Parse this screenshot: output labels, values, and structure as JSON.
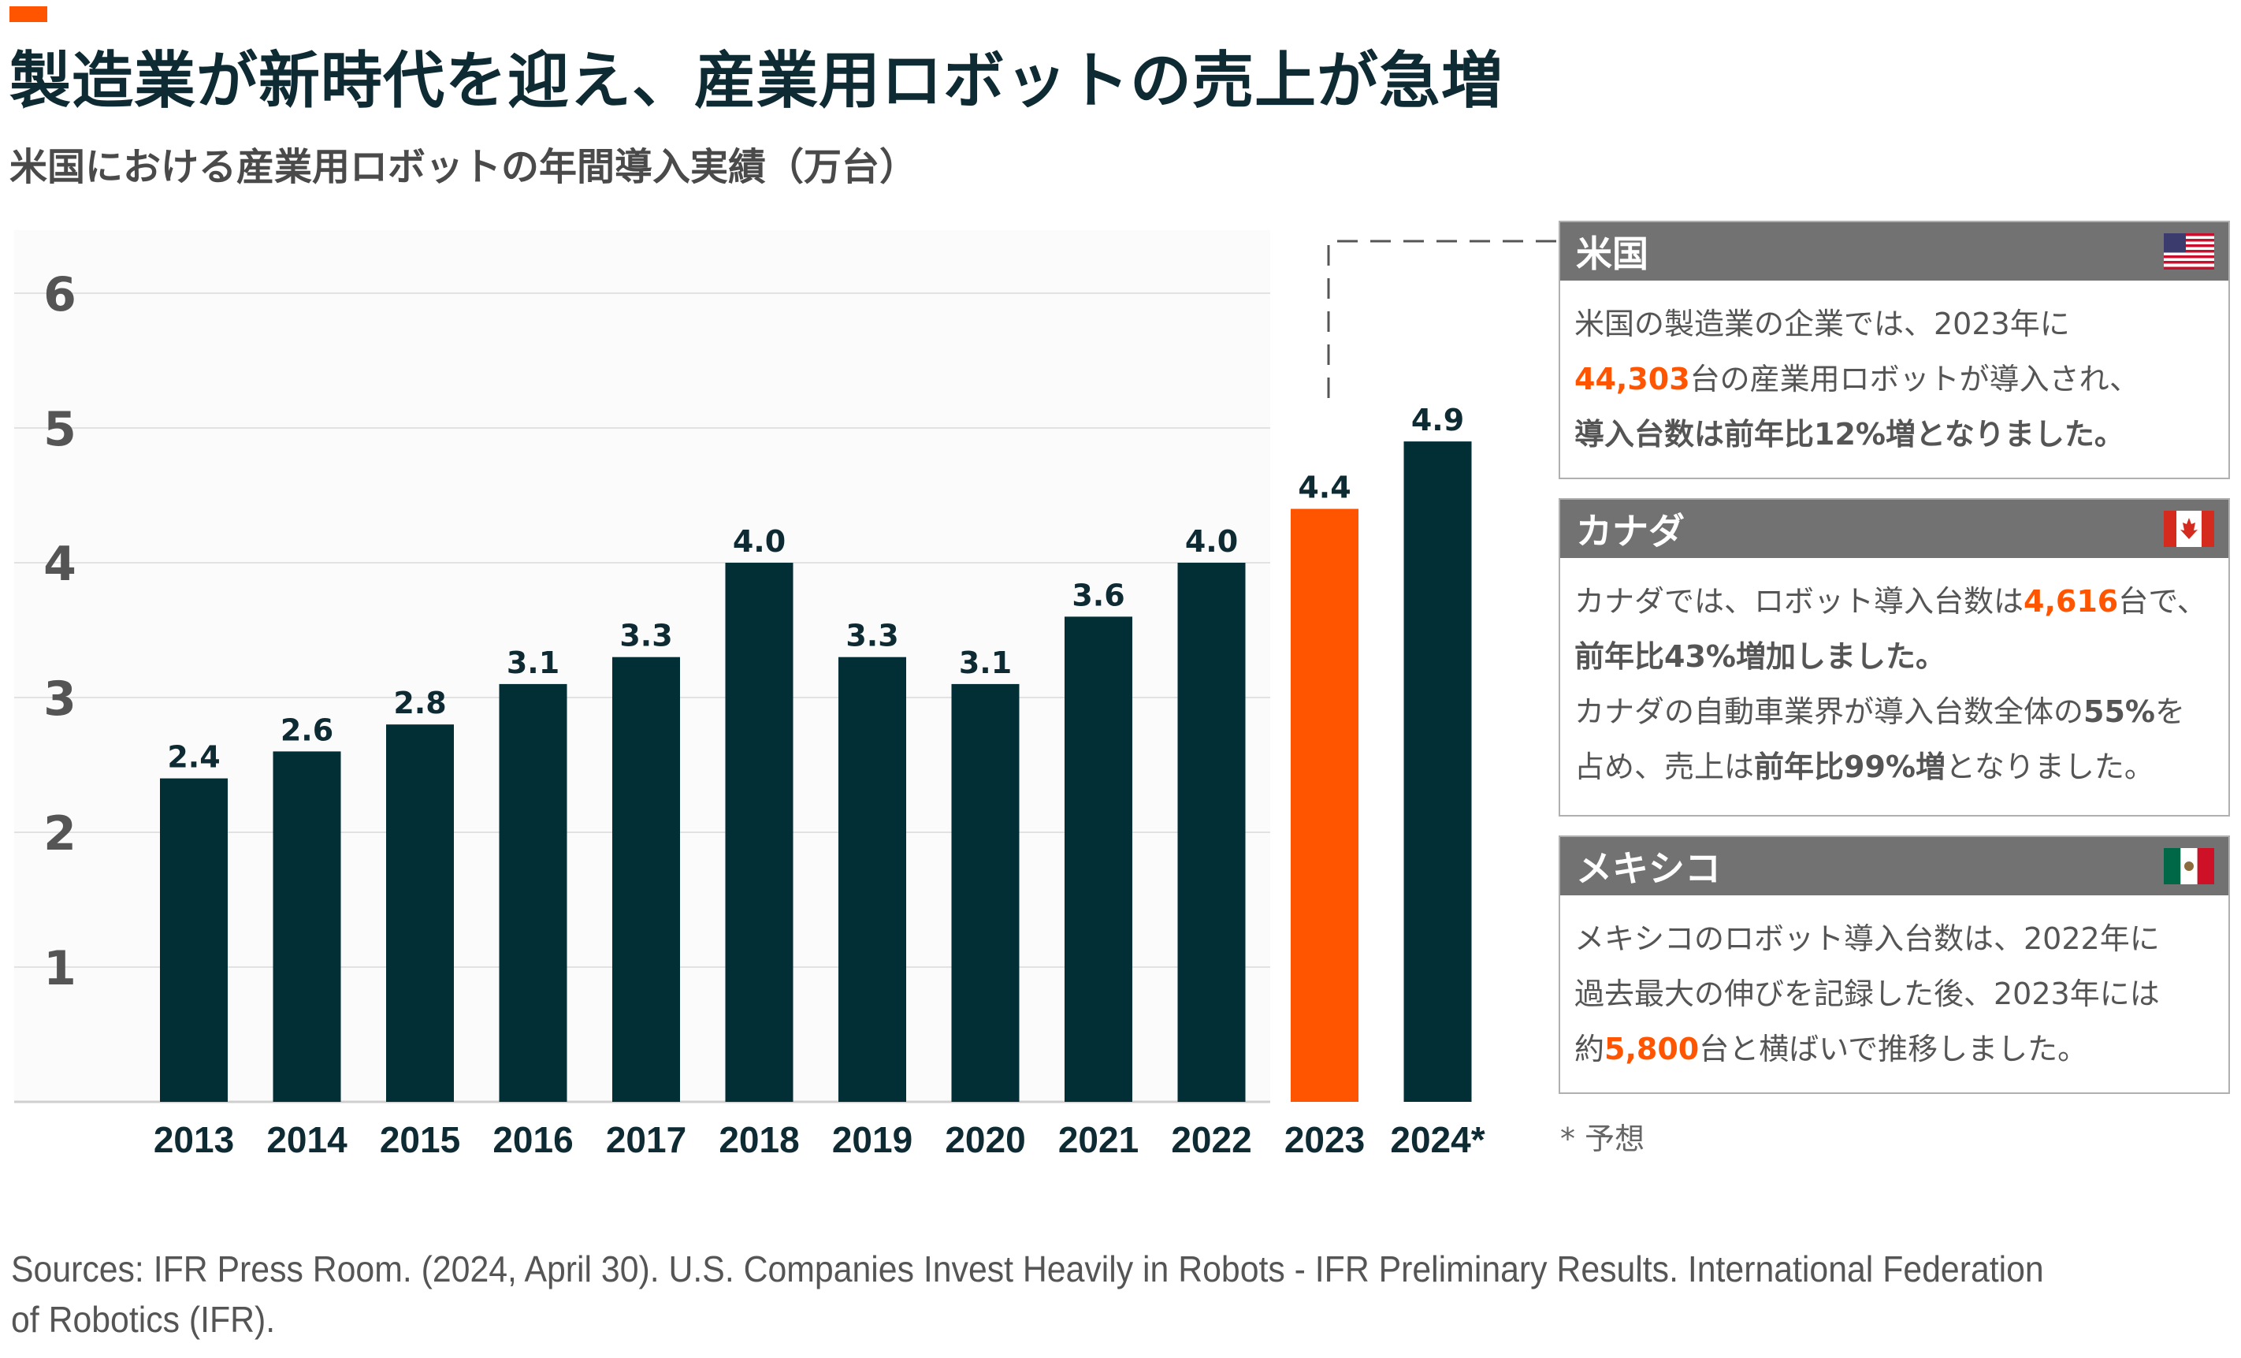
{
  "header": {
    "title": "製造業が新時代を迎え、産業用ロボットの売上が急増",
    "subtitle": "米国における産業用ロボットの年間導入実績（万台）"
  },
  "colors": {
    "accent": "#ff5500",
    "bar": "#022e35",
    "panel_header": "#727272"
  },
  "chart_data": {
    "type": "bar",
    "title": "米国における産業用ロボットの年間導入実績（万台）",
    "categories": [
      "2013",
      "2014",
      "2015",
      "2016",
      "2017",
      "2018",
      "2019",
      "2020",
      "2021",
      "2022",
      "2023",
      "2024*"
    ],
    "values": [
      2.4,
      2.6,
      2.8,
      3.1,
      3.3,
      4.0,
      3.3,
      3.1,
      3.6,
      4.0,
      4.4,
      4.9
    ],
    "labels": [
      "2.4",
      "2.6",
      "2.8",
      "3.1",
      "3.3",
      "4.0",
      "3.3",
      "3.1",
      "3.6",
      "4.0",
      "4.4",
      "4.9"
    ],
    "highlight_index": 10,
    "ylim": [
      0,
      6
    ],
    "yticks": [
      "1",
      "2",
      "3",
      "4",
      "5",
      "6"
    ],
    "grid": true
  },
  "panels": [
    {
      "title": "米国",
      "flag": "us-flag-icon",
      "lines": [
        [
          {
            "t": "米国の製造業の企業では、2023年に"
          }
        ],
        [
          {
            "t": "44,303",
            "s": "hl"
          },
          {
            "t": "台の産業用ロボットが導入され、"
          }
        ],
        [
          {
            "t": "導入台数は前年比12%増となりました。",
            "s": "b"
          }
        ]
      ]
    },
    {
      "title": "カナダ",
      "flag": "canada-flag-icon",
      "lines": [
        [
          {
            "t": "カナダでは、ロボット導入台数は"
          },
          {
            "t": "4,616",
            "s": "hl"
          },
          {
            "t": "台で、"
          }
        ],
        [
          {
            "t": "前年比43%増加しました。",
            "s": "b"
          }
        ],
        [
          {
            "t": "カナダの自動車業界が導入台数全体の"
          },
          {
            "t": "55%",
            "s": "b"
          },
          {
            "t": "を"
          }
        ],
        [
          {
            "t": "占め、売上は"
          },
          {
            "t": "前年比99%増",
            "s": "b"
          },
          {
            "t": "となりました。"
          }
        ]
      ]
    },
    {
      "title": "メキシコ",
      "flag": "mexico-flag-icon",
      "lines": [
        [
          {
            "t": "メキシコのロボット導入台数は、2022年に"
          }
        ],
        [
          {
            "t": "過去最大の伸びを記録した後、2023年には"
          }
        ],
        [
          {
            "t": "約"
          },
          {
            "t": "5,800",
            "s": "hl"
          },
          {
            "t": "台と横ばいで推移しました。"
          }
        ]
      ]
    }
  ],
  "footnote": "* 予想",
  "source": "Sources: IFR Press Room. (2024, April 30). U.S. Companies Invest Heavily in Robots - IFR Preliminary Results. International Federation of Robotics (IFR)."
}
